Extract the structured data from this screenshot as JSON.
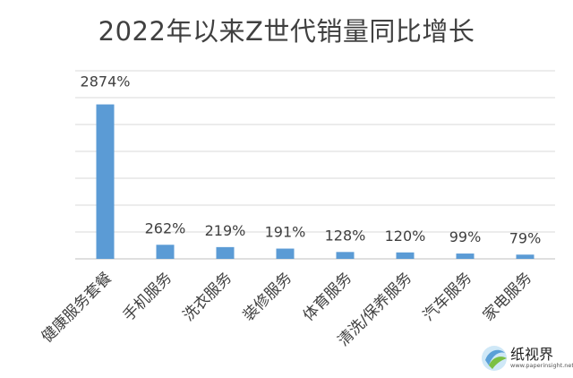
{
  "chart_data": {
    "type": "bar",
    "title": "2022年以来Z世代销量同比增长",
    "categories": [
      "健康服务套餐",
      "手机服务",
      "洗衣服务",
      "装修服务",
      "体育服务",
      "清洗/保养服务",
      "汽车服务",
      "家电服务"
    ],
    "values": [
      2874,
      262,
      219,
      191,
      128,
      120,
      99,
      79
    ],
    "data_labels": [
      "2874%",
      "262%",
      "219%",
      "191%",
      "128%",
      "120%",
      "99%",
      "79%"
    ],
    "ylim": [
      0,
      3500
    ],
    "grid": true,
    "bar_color": "#5B9BD5",
    "grid_color": "#D9D9D9"
  },
  "watermark": {
    "title": "纸视界",
    "url": "www.paperinsight.net"
  }
}
